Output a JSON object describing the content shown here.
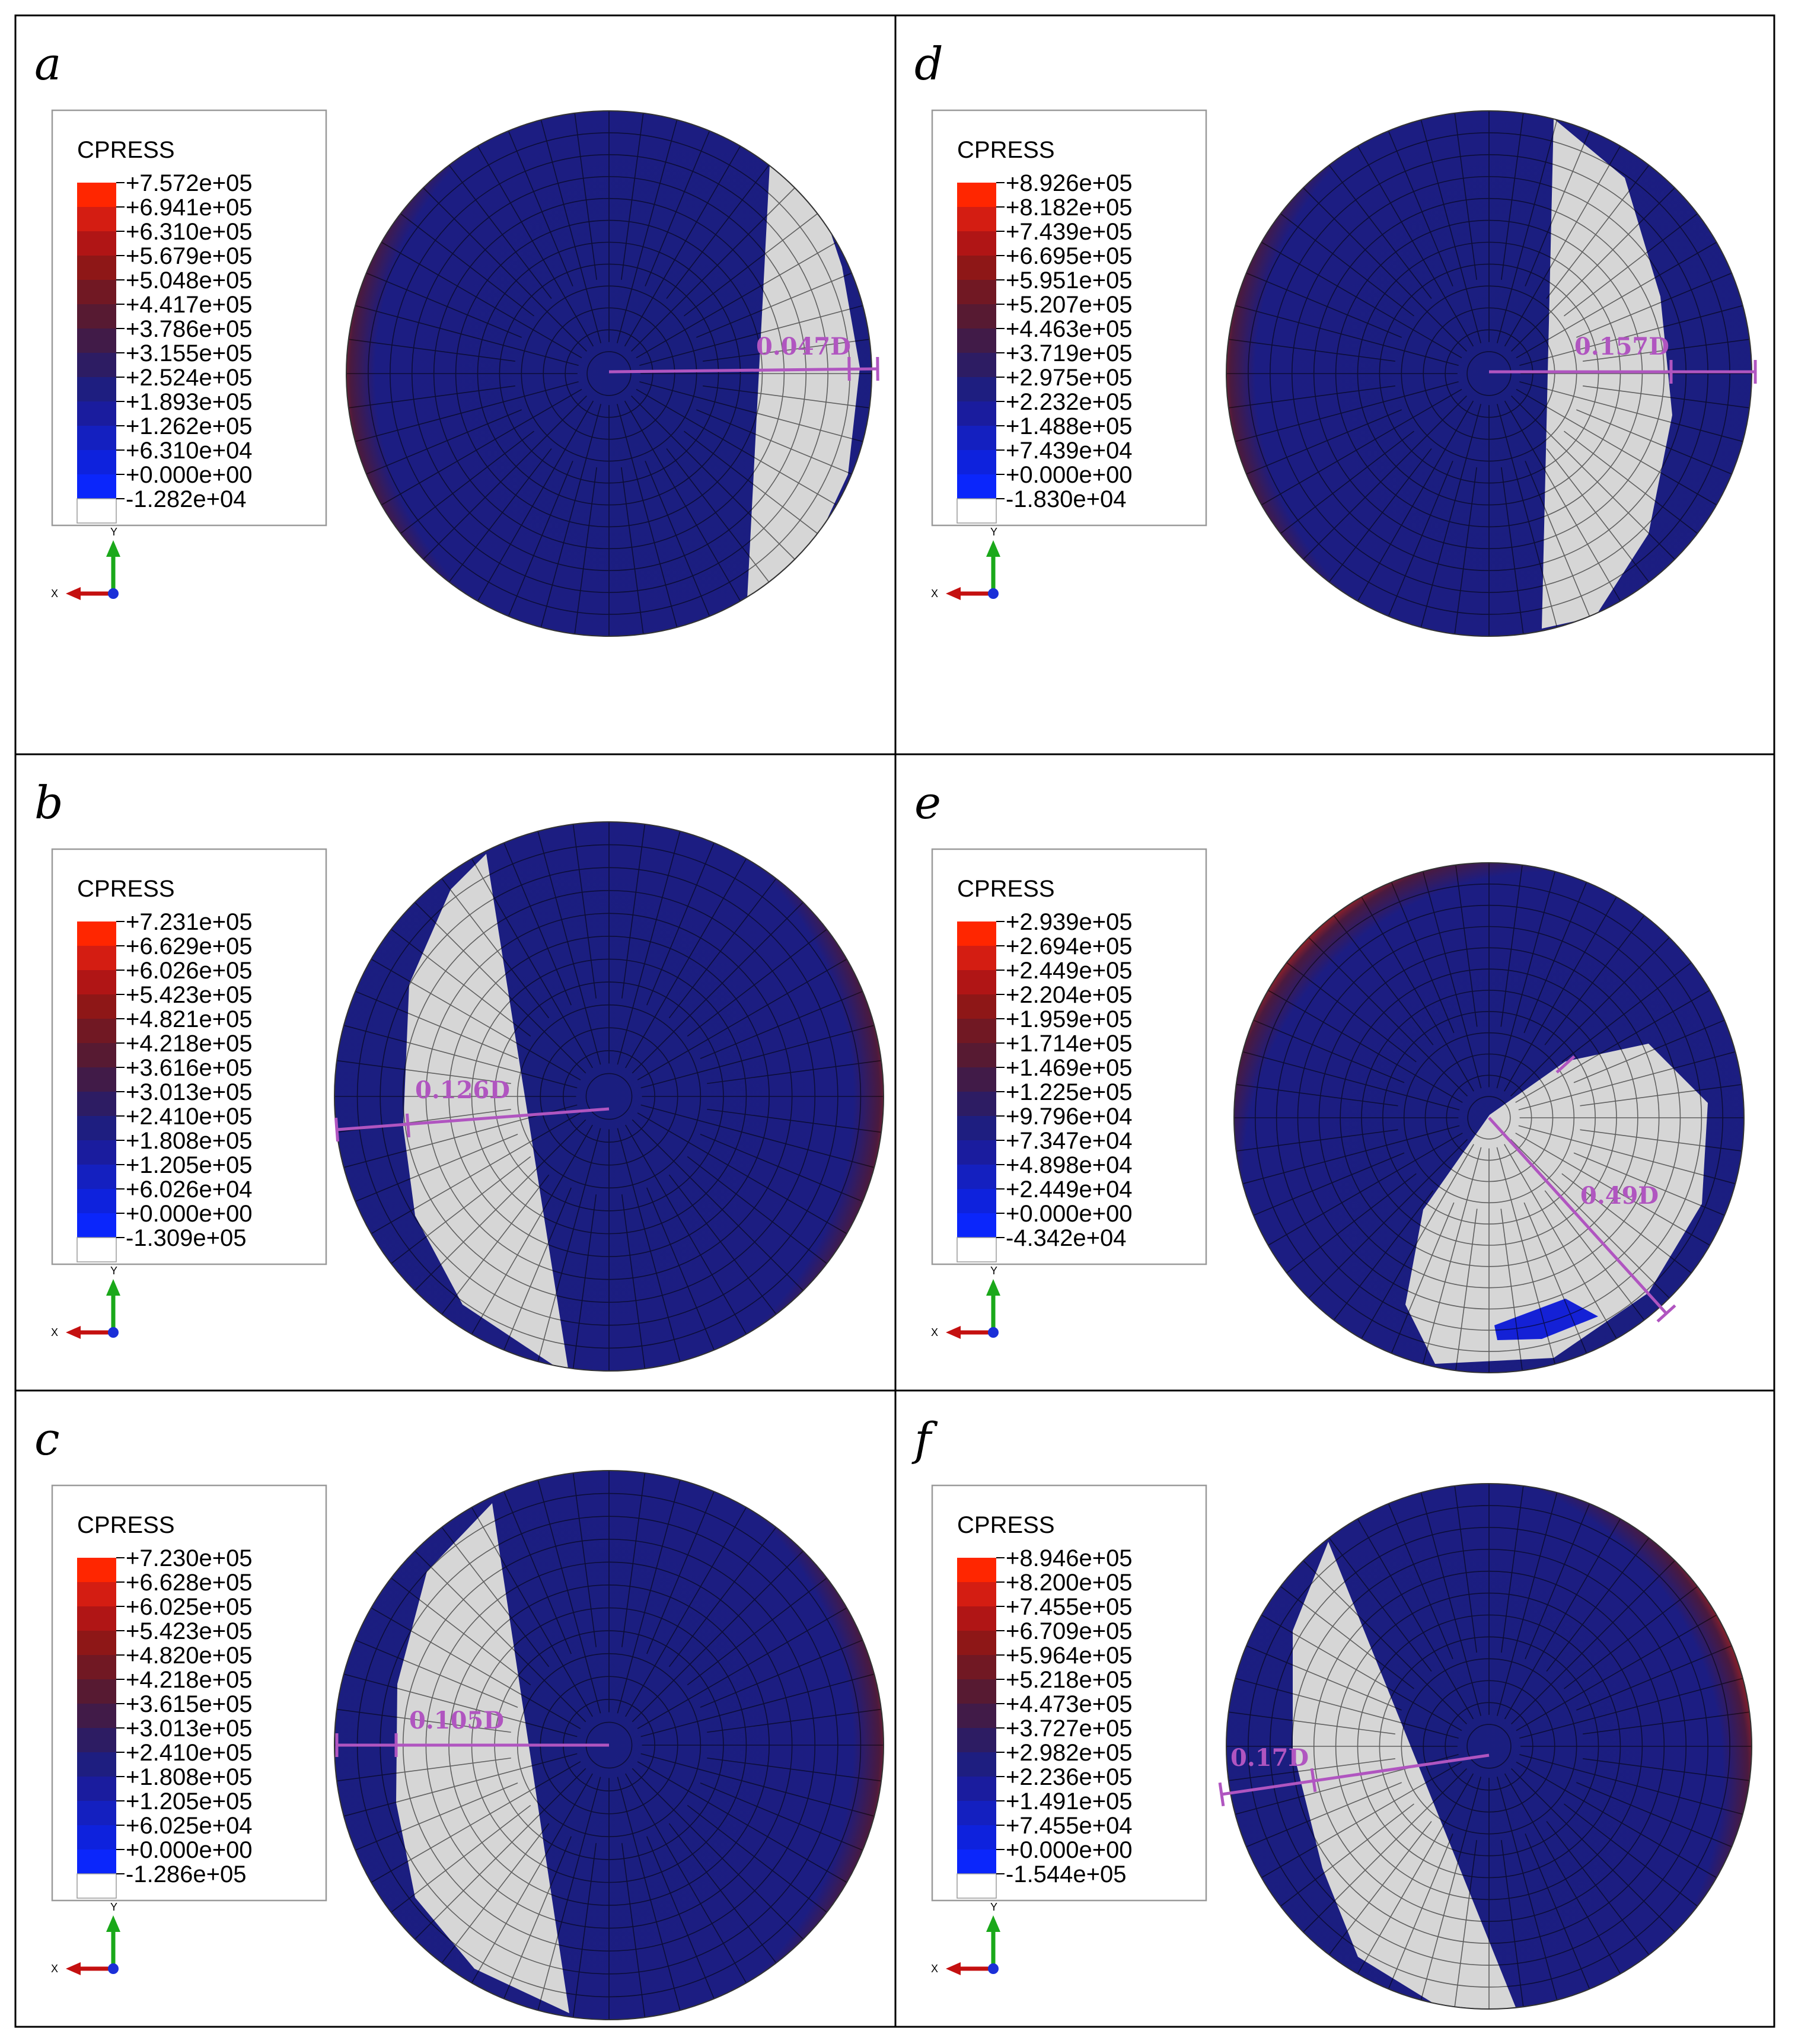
{
  "figure": {
    "legend_title": "CPRESS",
    "axis_labels": {
      "y": "Y",
      "x": "X"
    },
    "colors": {
      "scale": [
        "#ff2600",
        "#d41d12",
        "#b01515",
        "#8e1717",
        "#711823",
        "#571a32",
        "#411b48",
        "#2d1c63",
        "#1e1e80",
        "#1a1c9e",
        "#1420c0",
        "#0e22dd",
        "#0b26fb"
      ],
      "contact_blue": "#1421d6",
      "deep_blue": "#1a1e7e",
      "rim_red": "#ff2a00",
      "gap_grey": "#d6d6d6",
      "mesh_line": "#000000",
      "annotation": "#b055c0"
    },
    "panels": [
      {
        "id": "a",
        "letter": "a",
        "legend": [
          "+7.572e+05",
          "+6.941e+05",
          "+6.310e+05",
          "+5.679e+05",
          "+5.048e+05",
          "+4.417e+05",
          "+3.786e+05",
          "+3.155e+05",
          "+2.524e+05",
          "+1.893e+05",
          "+1.262e+05",
          "+6.310e+04",
          "+0.000e+00",
          "-1.282e+04"
        ],
        "gap_label": "0.047D",
        "gap_fraction": 0.047
      },
      {
        "id": "b",
        "letter": "b",
        "legend": [
          "+7.231e+05",
          "+6.629e+05",
          "+6.026e+05",
          "+5.423e+05",
          "+4.821e+05",
          "+4.218e+05",
          "+3.616e+05",
          "+3.013e+05",
          "+2.410e+05",
          "+1.808e+05",
          "+1.205e+05",
          "+6.026e+04",
          "+0.000e+00",
          "-1.309e+05"
        ],
        "gap_label": "0.126D",
        "gap_fraction": 0.126
      },
      {
        "id": "c",
        "letter": "c",
        "legend": [
          "+7.230e+05",
          "+6.628e+05",
          "+6.025e+05",
          "+5.423e+05",
          "+4.820e+05",
          "+4.218e+05",
          "+3.615e+05",
          "+3.013e+05",
          "+2.410e+05",
          "+1.808e+05",
          "+1.205e+05",
          "+6.025e+04",
          "+0.000e+00",
          "-1.286e+05"
        ],
        "gap_label": "0.105D",
        "gap_fraction": 0.105
      },
      {
        "id": "d",
        "letter": "d",
        "legend": [
          "+8.926e+05",
          "+8.182e+05",
          "+7.439e+05",
          "+6.695e+05",
          "+5.951e+05",
          "+5.207e+05",
          "+4.463e+05",
          "+3.719e+05",
          "+2.975e+05",
          "+2.232e+05",
          "+1.488e+05",
          "+7.439e+04",
          "+0.000e+00",
          "-1.830e+04"
        ],
        "gap_label": "0.157D",
        "gap_fraction": 0.157
      },
      {
        "id": "e",
        "letter": "e",
        "legend": [
          "+2.939e+05",
          "+2.694e+05",
          "+2.449e+05",
          "+2.204e+05",
          "+1.959e+05",
          "+1.714e+05",
          "+1.469e+05",
          "+1.225e+05",
          "+9.796e+04",
          "+7.347e+04",
          "+4.898e+04",
          "+2.449e+04",
          "+0.000e+00",
          "-4.342e+04"
        ],
        "gap_label": "0.49D",
        "gap_fraction": 0.49
      },
      {
        "id": "f",
        "letter": "f",
        "legend": [
          "+8.946e+05",
          "+8.200e+05",
          "+7.455e+05",
          "+6.709e+05",
          "+5.964e+05",
          "+5.218e+05",
          "+4.473e+05",
          "+3.727e+05",
          "+2.982e+05",
          "+2.236e+05",
          "+1.491e+05",
          "+7.455e+04",
          "+0.000e+00",
          "-1.544e+05"
        ],
        "gap_label": "0.17D",
        "gap_fraction": 0.17
      }
    ]
  }
}
